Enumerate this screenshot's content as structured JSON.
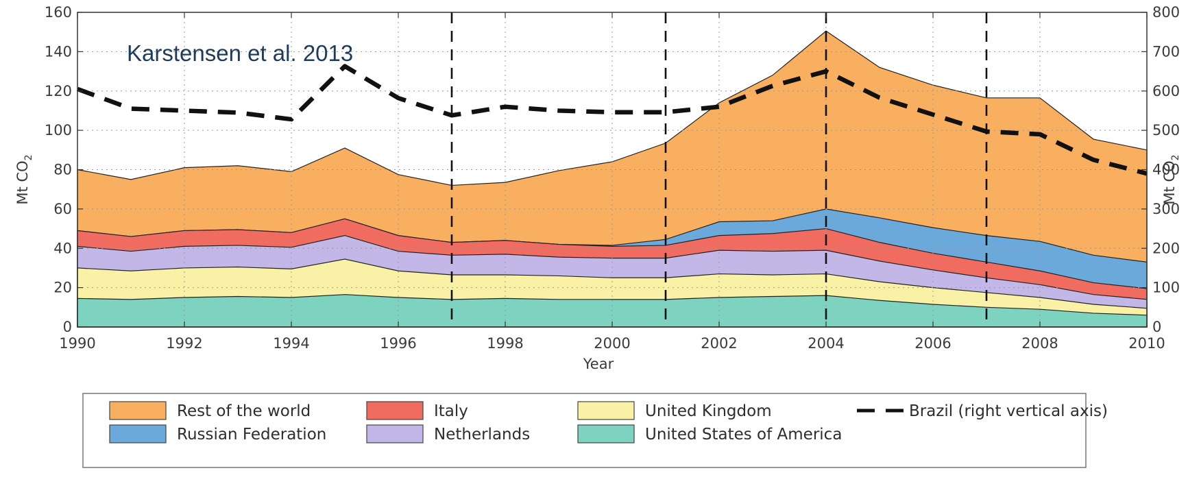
{
  "chart_data": {
    "type": "area",
    "stacked": true,
    "title": "",
    "xlabel": "Year",
    "ylabel_left": "Mt CO",
    "ylabel_left_sub": "2",
    "ylabel_right": "Mt CO",
    "ylabel_right_sub": "2",
    "annotation": "Karstensen et al. 2013",
    "x": [
      1990,
      1991,
      1992,
      1993,
      1994,
      1995,
      1996,
      1997,
      1998,
      1999,
      2000,
      2001,
      2002,
      2003,
      2004,
      2005,
      2006,
      2007,
      2008,
      2009,
      2010
    ],
    "xlim": [
      1990,
      2010
    ],
    "ylim_left": [
      0,
      160
    ],
    "ylim_right": [
      0,
      800
    ],
    "x_ticks": [
      "1990",
      "1992",
      "1994",
      "1996",
      "1998",
      "2000",
      "2002",
      "2004",
      "2006",
      "2008",
      "2010"
    ],
    "y_ticks_left": [
      "0",
      "20",
      "40",
      "60",
      "80",
      "100",
      "120",
      "140",
      "160"
    ],
    "y_ticks_right": [
      "0",
      "100",
      "200",
      "300",
      "400",
      "500",
      "600",
      "700",
      "800"
    ],
    "grid": true,
    "legend_position": "bottom",
    "vertical_lines": [
      1997,
      2001,
      2004,
      2007
    ],
    "series": [
      {
        "name": "United States of America",
        "color": "#7dd3c0",
        "values": [
          14.5,
          14,
          15,
          15.5,
          15,
          16.5,
          15,
          14,
          14.5,
          14,
          14,
          14,
          15,
          15.5,
          16,
          13.5,
          11.5,
          10,
          9,
          7,
          6
        ]
      },
      {
        "name": "United Kingdom",
        "color": "#f8f1a6",
        "values": [
          15.5,
          14.5,
          15,
          15,
          14.5,
          18,
          13.5,
          12.5,
          12,
          12,
          11,
          11,
          12,
          11,
          11,
          9.5,
          8.5,
          7.5,
          6,
          4.5,
          3.5
        ]
      },
      {
        "name": "Netherlands",
        "color": "#c2b7e6",
        "values": [
          11,
          10,
          11,
          11,
          11,
          12,
          10,
          10,
          10.5,
          9.5,
          10,
          10,
          12,
          12,
          12,
          10.5,
          9,
          7.5,
          6.5,
          5,
          4.5
        ]
      },
      {
        "name": "Italy",
        "color": "#f06b60",
        "values": [
          8,
          7.5,
          8,
          8,
          7.5,
          8.5,
          8,
          6.5,
          7,
          6.5,
          6,
          6.5,
          7.5,
          9,
          11,
          9.5,
          8.5,
          8,
          7,
          6,
          5.5
        ]
      },
      {
        "name": "Russian Federation",
        "color": "#6aa9d9",
        "values": [
          0,
          0,
          0,
          0,
          0,
          0,
          0,
          0,
          0,
          0,
          0.5,
          3,
          7,
          6.5,
          10,
          12.5,
          13,
          13.5,
          15,
          14,
          13.5
        ]
      },
      {
        "name": "Rest of the world",
        "color": "#f8b060",
        "values": [
          31,
          29,
          32,
          32.5,
          31,
          36,
          31,
          29,
          29.5,
          37.5,
          42.5,
          49,
          60.5,
          74,
          90.5,
          76.5,
          72.5,
          70,
          73,
          59,
          57
        ]
      },
      {
        "name": "Brazil (right vertical axis)",
        "axis": "right",
        "style": "dashed",
        "color": "#111111",
        "values": [
          605,
          555,
          550,
          545,
          528,
          663,
          582,
          538,
          560,
          550,
          546,
          546,
          560,
          613,
          650,
          583,
          540,
          497,
          490,
          425,
          390
        ]
      }
    ]
  }
}
